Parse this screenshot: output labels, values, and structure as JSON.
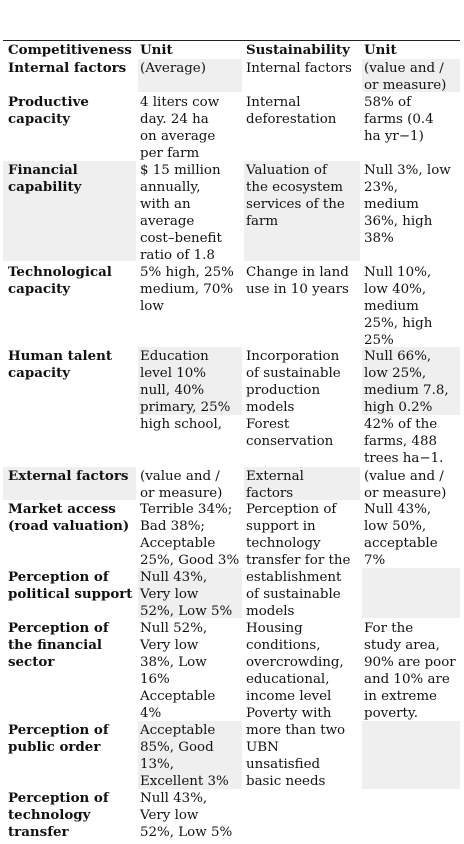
{
  "table": {
    "headers": [
      "Competitiveness",
      "Unit",
      "Sustainability",
      "Unit"
    ],
    "rows": [
      [
        "Internal factors",
        "(Average)",
        "Internal factors",
        "(value and /\nor measure)"
      ],
      [
        "Productive\ncapacity",
        "4 liters cow\nday. 24 ha\non average\nper farm",
        "Internal\ndeforestation",
        "58% of\nfarms (0.4\nha yr−1)"
      ],
      [
        "Financial\ncapability",
        "$ 15 million\nannually,\nwith an\naverage\ncost–benefit\nratio of 1.8",
        "Valuation of\nthe ecosystem\nservices of the\nfarm",
        "Null 3%, low\n23%,\nmedium\n36%, high\n38%"
      ],
      [
        "Technological\ncapacity",
        "5% high, 25%\nmedium, 70%\nlow",
        "Change in land\nuse in 10 years",
        "Null 10%,\nlow 40%,\nmedium\n25%, high\n25%"
      ],
      [
        "Human talent\ncapacity",
        "Education\nlevel 10%\nnull, 40%\nprimary, 25%\nhigh school,",
        "Incorporation\nof sustainable\nproduction\nmodels",
        "Null 66%,\nlow 25%,\nmedium 7.8,\nhigh 0.2%"
      ],
      [
        "",
        "",
        "Forest\nconservation",
        "42% of the\nfarms, 488\ntrees ha−1."
      ],
      [
        "External factors",
        "(value and /\nor measure)",
        "External\nfactors",
        "(value and /\nor measure)"
      ],
      [
        "Market access\n(road valuation)",
        "Terrible 34%;\nBad 38%;\nAcceptable\n25%, Good 3%",
        "Perception of\nsupport in\ntechnology\ntransfer for the\nestablishment\nof sustainable\nmodels",
        "Null 43%,\nlow 50%,\nacceptable\n7%"
      ],
      [
        "Perception of\npolitical support",
        "Null 43%,\nVery low\n52%, Low 5%",
        "",
        ""
      ],
      [
        "Perception of\nthe financial\nsector",
        "Null 52%,\nVery low\n38%, Low\n16%\nAcceptable\n4%",
        "Housing\nconditions,\novercrowding,\neducational,\nincome level\nPoverty with\nmore than two\nUBN\nunsatisfied\nbasic needs",
        "For the\nstudy area,\n90% are poor\nand 10% are\nin extreme\npoverty."
      ],
      [
        "Perception of\npublic order",
        "Acceptable\n85%, Good\n13%,\nExcellent 3%",
        "",
        ""
      ],
      [
        "Perception of\ntechnology\ntransfer",
        "Null 43%,\nVery low\n52%, Low 5%",
        "",
        ""
      ]
    ]
  }
}
